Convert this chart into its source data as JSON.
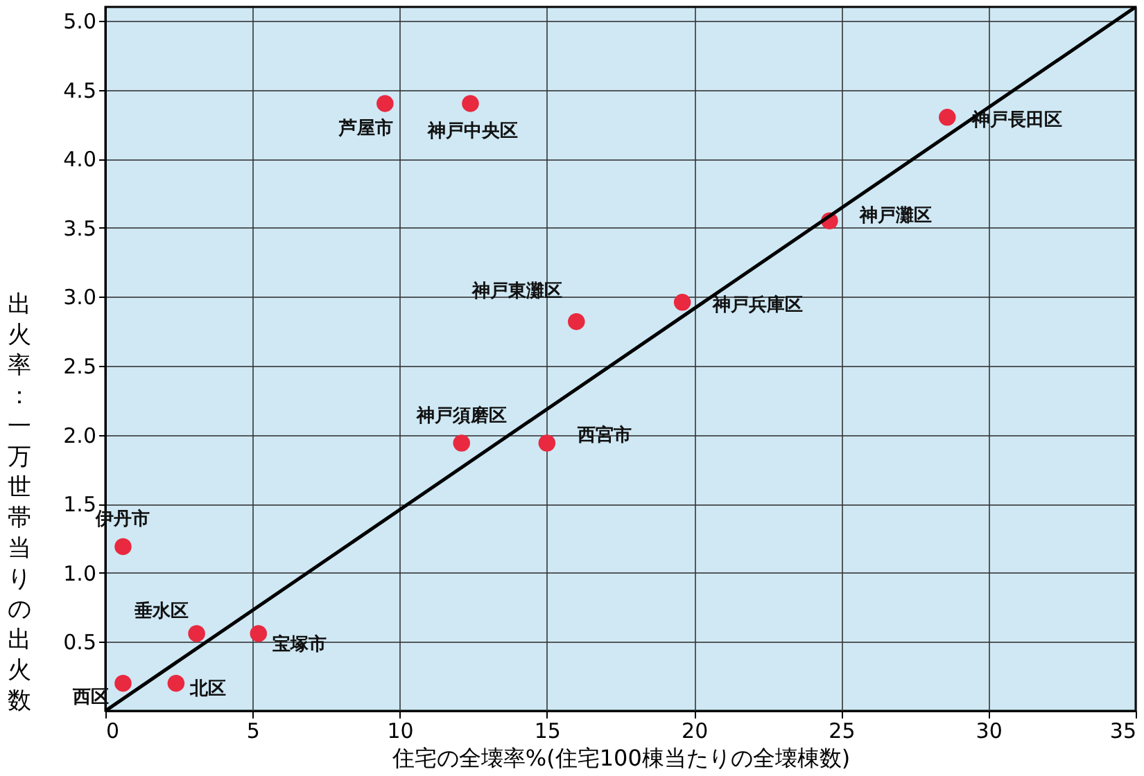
{
  "chart_data": {
    "type": "scatter",
    "xlabel": "住宅の全壊率%(住宅100棟当たりの全壊棟数)",
    "ylabel": "出火率：一万世帯当りの出火数",
    "xlim": [
      0,
      35
    ],
    "xticks": [
      0,
      5,
      10,
      15,
      20,
      25,
      30,
      35
    ],
    "ylim": [
      0,
      5.1
    ],
    "yticks": [
      {
        "value": 0.5,
        "label": "0.5"
      },
      {
        "value": 1,
        "label": "1.0"
      },
      {
        "value": 1.5,
        "label": "1.5"
      },
      {
        "value": 2,
        "label": "2.0"
      },
      {
        "value": 2.5,
        "label": "2.5"
      },
      {
        "value": 3,
        "label": "3.0"
      },
      {
        "value": 3.5,
        "label": "3.5"
      },
      {
        "value": 4,
        "label": "4.0"
      },
      {
        "value": 4.5,
        "label": "4.5"
      },
      {
        "value": 5,
        "label": "5.0"
      }
    ],
    "grid": true,
    "marker": "circle",
    "series": [
      {
        "color": "#e8293f",
        "x": [
          0.6,
          2.4,
          3.1,
          5.2,
          0.6,
          12.1,
          15.0,
          16.0,
          19.6,
          24.6,
          28.6,
          9.5,
          12.4
        ],
        "values": [
          0.2,
          0.2,
          0.56,
          0.56,
          1.19,
          1.94,
          1.94,
          2.82,
          2.96,
          3.55,
          4.3,
          4.4,
          4.4
        ]
      },
      {
        "type": "line",
        "marker": "none",
        "line_style": "solid",
        "color": "#000000",
        "x": [
          0,
          35
        ],
        "values": [
          0,
          5.1
        ]
      }
    ],
    "annotations": [
      {
        "text": "西区",
        "x": 0.6,
        "y": 0.2
      },
      {
        "text": "北区",
        "x": 2.4,
        "y": 0.2
      },
      {
        "text": "垂水区",
        "x": 3.1,
        "y": 0.56
      },
      {
        "text": "宝塚市",
        "x": 5.2,
        "y": 0.56
      },
      {
        "text": "伊丹市",
        "x": 0.6,
        "y": 1.19
      },
      {
        "text": "神戸須磨区",
        "x": 12.1,
        "y": 1.94
      },
      {
        "text": "西宮市",
        "x": 15.0,
        "y": 1.94
      },
      {
        "text": "神戸東灘区",
        "x": 16.0,
        "y": 2.82
      },
      {
        "text": "神戸兵庫区",
        "x": 19.6,
        "y": 2.96
      },
      {
        "text": "神戸灘区",
        "x": 24.6,
        "y": 3.55
      },
      {
        "text": "神戸長田区",
        "x": 28.6,
        "y": 4.3
      },
      {
        "text": "芦屋市",
        "x": 9.5,
        "y": 4.4
      },
      {
        "text": "神戸中央区",
        "x": 12.4,
        "y": 4.4
      }
    ]
  }
}
